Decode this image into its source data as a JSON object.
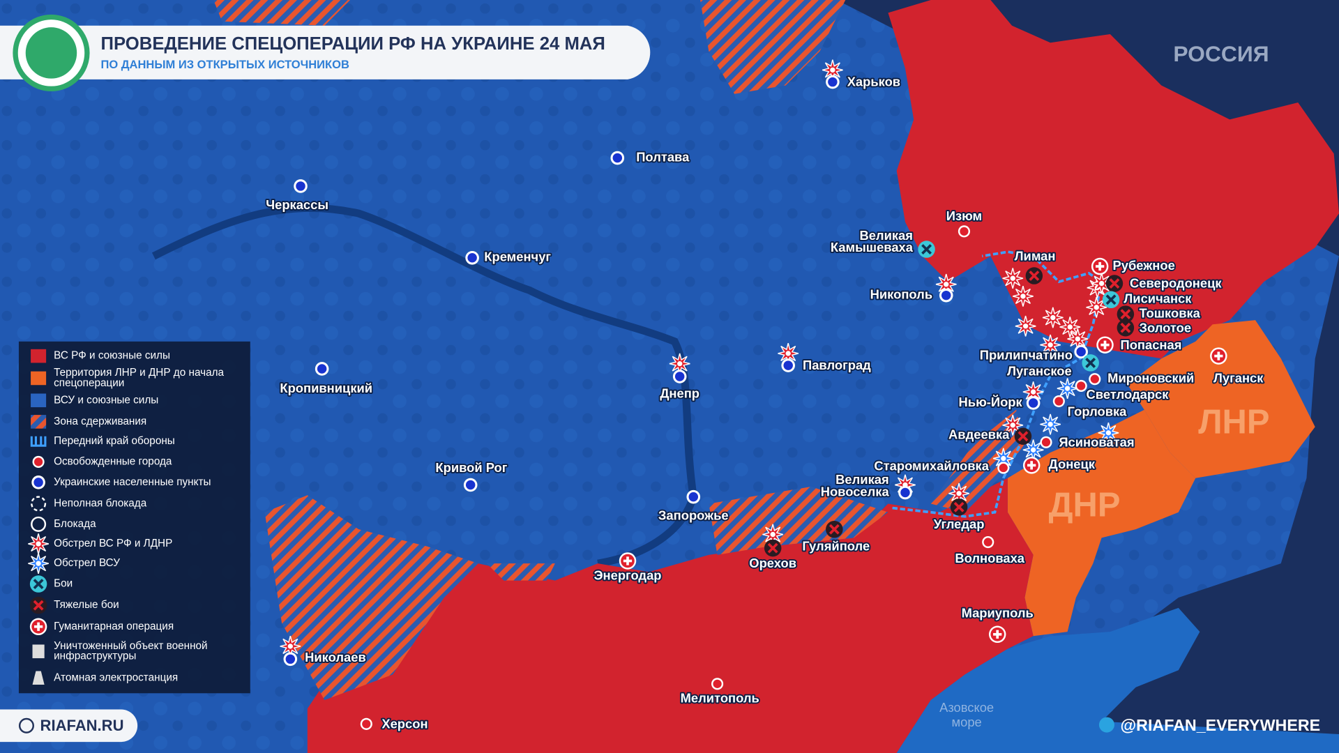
{
  "header": {
    "title": "ПРОВЕДЕНИЕ СПЕЦОПЕРАЦИИ РФ НА УКРАИНЕ 24 МАЯ",
    "subtitle": "ПО ДАННЫМ ИЗ ОТКРЫТЫХ ИСТОЧНИКОВ"
  },
  "map": {
    "country_label": "РОССИЯ",
    "region_labels": [
      "ЛНР",
      "ДНР"
    ],
    "sea_label": [
      "Азовское",
      "море"
    ]
  },
  "cities": [
    {
      "lines": [
        "Харьков"
      ],
      "marker": "ukrainian"
    },
    {
      "lines": [
        "Полтава"
      ],
      "marker": "ukrainian"
    },
    {
      "lines": [
        "Черкассы"
      ],
      "marker": "ukrainian"
    },
    {
      "lines": [
        "Кременчуг"
      ],
      "marker": "ukrainian"
    },
    {
      "lines": [
        "Кропивницкий"
      ],
      "marker": "ukrainian"
    },
    {
      "lines": [
        "Днепр"
      ],
      "marker": "ukrainian"
    },
    {
      "lines": [
        "Павлоград"
      ],
      "marker": "ukrainian"
    },
    {
      "lines": [
        "Кривой Рог"
      ],
      "marker": "ukrainian"
    },
    {
      "lines": [
        "Запорожье"
      ],
      "marker": "ukrainian"
    },
    {
      "lines": [
        "Энергодар"
      ],
      "marker": "humanitarian"
    },
    {
      "lines": [
        "Орехов"
      ],
      "marker": "heavy"
    },
    {
      "lines": [
        "Гуляйполе"
      ],
      "marker": "heavy"
    },
    {
      "lines": [
        "Николаев"
      ],
      "marker": "ukrainian"
    },
    {
      "lines": [
        "Херсон"
      ],
      "marker": "liberated"
    },
    {
      "lines": [
        "Мелитополь"
      ],
      "marker": "liberated"
    },
    {
      "lines": [
        "Изюм"
      ],
      "marker": "liberated"
    },
    {
      "lines": [
        "Великая",
        "Камышеваха"
      ],
      "marker": "fighting"
    },
    {
      "lines": [
        "Никополь"
      ],
      "marker": "ukrainian"
    },
    {
      "lines": [
        "Лиман"
      ],
      "marker": "heavy"
    },
    {
      "lines": [
        "Рубежное"
      ],
      "marker": "humanitarian"
    },
    {
      "lines": [
        "Северодонецк"
      ],
      "marker": "heavy"
    },
    {
      "lines": [
        "Лисичанск"
      ],
      "marker": "fighting"
    },
    {
      "lines": [
        "Тошковка"
      ],
      "marker": "heavy"
    },
    {
      "lines": [
        "Золотое"
      ],
      "marker": "heavy"
    },
    {
      "lines": [
        "Попасная"
      ],
      "marker": "humanitarian"
    },
    {
      "lines": [
        "Прилипчатино"
      ],
      "marker": "ukrainian"
    },
    {
      "lines": [
        "Луганское"
      ],
      "marker": "fighting"
    },
    {
      "lines": [
        "Мироновский"
      ],
      "marker": "liberated"
    },
    {
      "lines": [
        "Светлодарск"
      ],
      "marker": "liberated"
    },
    {
      "lines": [
        "Луганск"
      ],
      "marker": "humanitarian"
    },
    {
      "lines": [
        "Нью-Йорк"
      ],
      "marker": "ukrainian"
    },
    {
      "lines": [
        "Горловка"
      ],
      "marker": "liberated"
    },
    {
      "lines": [
        "Авдеевка"
      ],
      "marker": "heavy"
    },
    {
      "lines": [
        "Ясиноватая"
      ],
      "marker": "liberated"
    },
    {
      "lines": [
        "Донецк"
      ],
      "marker": "humanitarian"
    },
    {
      "lines": [
        "Старомихайловка"
      ],
      "marker": "liberated"
    },
    {
      "lines": [
        "Великая",
        "Новоселка"
      ],
      "marker": "ukrainian"
    },
    {
      "lines": [
        "Угледар"
      ],
      "marker": "heavy"
    },
    {
      "lines": [
        "Волноваха"
      ],
      "marker": "liberated"
    },
    {
      "lines": [
        "Мариуполь"
      ],
      "marker": "humanitarian"
    }
  ],
  "legend": [
    {
      "lines": [
        "ВС РФ и союзные силы"
      ]
    },
    {
      "lines": [
        "Территория ЛНР и ДНР до начала",
        "спецоперации"
      ]
    },
    {
      "lines": [
        "ВСУ и союзные силы"
      ]
    },
    {
      "lines": [
        "Зона сдерживания"
      ]
    },
    {
      "lines": [
        "Передний край обороны"
      ]
    },
    {
      "lines": [
        "Освобожденные города"
      ]
    },
    {
      "lines": [
        "Украинские населенные пункты"
      ]
    },
    {
      "lines": [
        "Неполная блокада"
      ]
    },
    {
      "lines": [
        "Блокада"
      ]
    },
    {
      "lines": [
        "Обстрел ВС РФ и ЛДНР"
      ]
    },
    {
      "lines": [
        "Обстрел ВСУ"
      ]
    },
    {
      "lines": [
        "Бои"
      ]
    },
    {
      "lines": [
        "Тяжелые бои"
      ]
    },
    {
      "lines": [
        "Гуманитарная операция"
      ]
    },
    {
      "lines": [
        "Уничтоженный объект военной",
        "инфраструктуры"
      ]
    },
    {
      "lines": [
        "Атомная электростанция"
      ]
    }
  ],
  "footer": {
    "site": "RIAFAN.RU",
    "channel": "@RIAFAN_EVERYWHERE"
  }
}
